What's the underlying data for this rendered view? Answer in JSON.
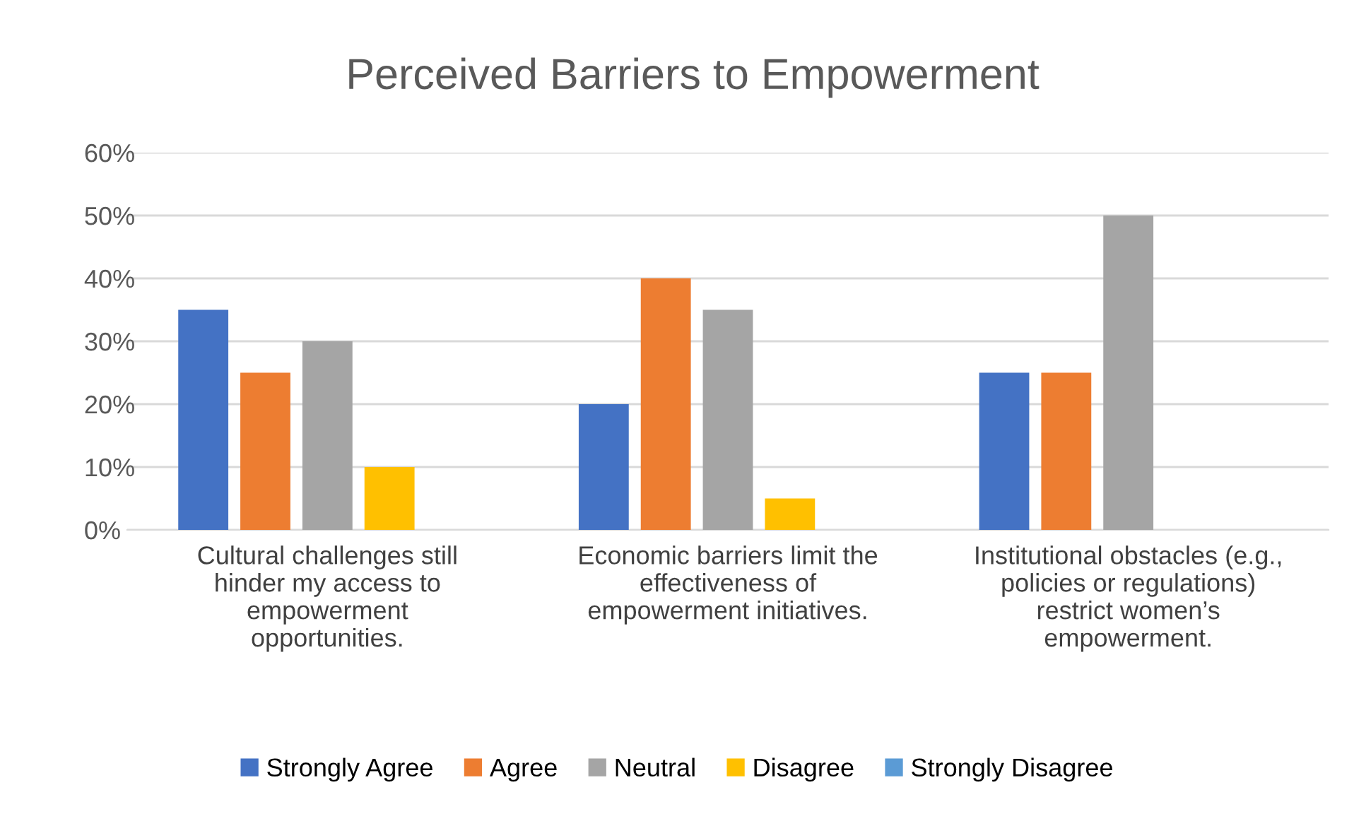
{
  "chart_data": {
    "type": "bar",
    "title": "Perceived Barriers to Empowerment",
    "categories": [
      "Cultural challenges still\nhinder my access to\nempowerment\nopportunities.",
      "Economic barriers limit the\neffectiveness of\nempowerment initiatives.",
      "Institutional obstacles (e.g.,\npolicies or regulations)\nrestrict women’s\nempowerment."
    ],
    "series": [
      {
        "name": "Strongly Agree",
        "color": "#4472c4",
        "values": [
          35,
          20,
          25
        ]
      },
      {
        "name": "Agree",
        "color": "#ed7d31",
        "values": [
          25,
          40,
          25
        ]
      },
      {
        "name": "Neutral",
        "color": "#a5a5a5",
        "values": [
          30,
          35,
          50
        ]
      },
      {
        "name": "Disagree",
        "color": "#ffc000",
        "values": [
          10,
          5,
          0
        ]
      },
      {
        "name": "Strongly Disagree",
        "color": "#5b9bd5",
        "values": [
          0,
          0,
          0
        ]
      }
    ],
    "ylim": [
      0,
      60
    ],
    "yticks": [
      {
        "value": 0,
        "label": "0%"
      },
      {
        "value": 10,
        "label": "10%"
      },
      {
        "value": 20,
        "label": "20%"
      },
      {
        "value": 30,
        "label": "30%"
      },
      {
        "value": 40,
        "label": "40%"
      },
      {
        "value": 50,
        "label": "50%"
      },
      {
        "value": 60,
        "label": "60%"
      }
    ],
    "grid": "y",
    "legend": "bottom"
  }
}
